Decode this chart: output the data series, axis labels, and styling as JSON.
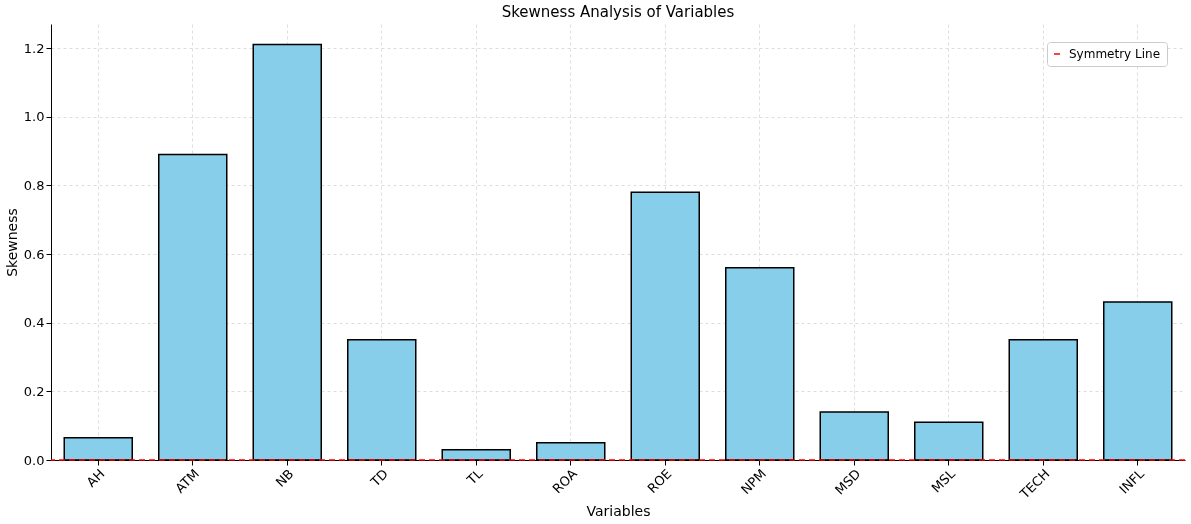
{
  "chart_data": {
    "type": "bar",
    "title": "Skewness Analysis of Variables",
    "xlabel": "Variables",
    "ylabel": "Skewness",
    "categories": [
      "AH",
      "ATM",
      "NB",
      "TD",
      "TL",
      "ROA",
      "ROE",
      "NPM",
      "MSD",
      "MSL",
      "TECH",
      "INFL"
    ],
    "series": [
      {
        "color": "#87ceeb",
        "values": [
          0.065,
          0.89,
          1.21,
          0.35,
          0.03,
          0.05,
          0.78,
          0.56,
          0.14,
          0.11,
          0.35,
          0.46
        ]
      }
    ],
    "ylim": [
      0,
      1.27
    ],
    "yticks": [
      {
        "value": 0,
        "label": "0.0"
      },
      0.2,
      0.4,
      0.6,
      0.8,
      {
        "value": 1,
        "label": "1.0"
      },
      1.2
    ],
    "grid": true,
    "legend": "top right",
    "ref_lines": [
      {
        "axis": "y",
        "value": 0,
        "label": "Symmetry Line",
        "color": "#ff0000",
        "line_style": "dashed"
      }
    ]
  }
}
